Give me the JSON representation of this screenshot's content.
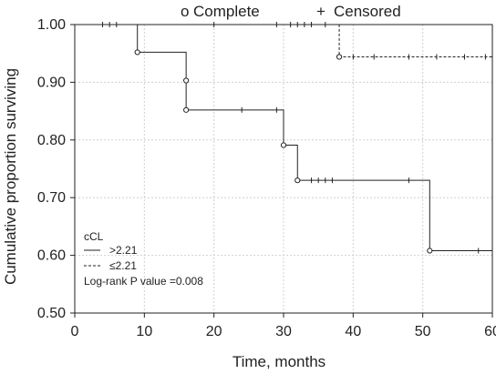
{
  "chart_data": {
    "type": "line",
    "subtype": "kaplan-meier",
    "xlabel": "Time, months",
    "ylabel": "Cumulative proportion surviving",
    "xlim": [
      0,
      60
    ],
    "ylim": [
      0.5,
      1.0
    ],
    "x_ticks": [
      0,
      10,
      20,
      30,
      40,
      50,
      60
    ],
    "x_tick_labels": [
      "0",
      "10",
      "20",
      "30",
      "40",
      "50",
      "60"
    ],
    "y_ticks": [
      0.5,
      0.6,
      0.7,
      0.8,
      0.9,
      1.0
    ],
    "y_tick_labels": [
      "0.50",
      "0.60",
      "0.70",
      "0.80",
      "0.90",
      "1.00"
    ],
    "grid": true,
    "top_legend": {
      "complete_symbol": "o",
      "complete_label": "Complete",
      "censored_symbol": "+",
      "censored_label": "Censored"
    },
    "inner_legend": {
      "title": "cCL",
      "entries": [
        ">2.21",
        "≤2.21"
      ],
      "note": "Log-rank P value =0.008"
    },
    "series": [
      {
        "name": ">2.21",
        "style": "solid",
        "steps": [
          [
            0,
            1.0
          ],
          [
            9,
            0.952
          ],
          [
            16,
            0.903
          ],
          [
            16,
            0.852
          ],
          [
            30,
            0.791
          ],
          [
            32,
            0.73
          ],
          [
            51,
            0.608
          ],
          [
            60,
            0.608
          ]
        ],
        "events": [
          [
            9,
            0.952
          ],
          [
            16,
            0.903
          ],
          [
            16,
            0.852
          ],
          [
            30,
            0.791
          ],
          [
            32,
            0.73
          ],
          [
            51,
            0.608
          ]
        ],
        "censored": [
          [
            24,
            0.852
          ],
          [
            29,
            0.852
          ],
          [
            34,
            0.73
          ],
          [
            35,
            0.73
          ],
          [
            36,
            0.73
          ],
          [
            37,
            0.73
          ],
          [
            48,
            0.73
          ],
          [
            58,
            0.608
          ],
          [
            60,
            0.608
          ]
        ]
      },
      {
        "name": "≤2.21",
        "style": "dashed",
        "steps": [
          [
            0,
            1.0
          ],
          [
            38,
            0.944
          ],
          [
            60,
            0.944
          ]
        ],
        "events": [
          [
            38,
            0.944
          ]
        ],
        "censored": [
          [
            4,
            1.0
          ],
          [
            5,
            1.0
          ],
          [
            6,
            1.0
          ],
          [
            20,
            1.0
          ],
          [
            29,
            1.0
          ],
          [
            31,
            1.0
          ],
          [
            32,
            1.0
          ],
          [
            33,
            1.0
          ],
          [
            34,
            1.0
          ],
          [
            36,
            1.0
          ],
          [
            40,
            0.944
          ],
          [
            43,
            0.944
          ],
          [
            48,
            0.944
          ],
          [
            52,
            0.944
          ],
          [
            56,
            0.944
          ],
          [
            59,
            0.944
          ],
          [
            60,
            0.944
          ]
        ]
      }
    ]
  }
}
